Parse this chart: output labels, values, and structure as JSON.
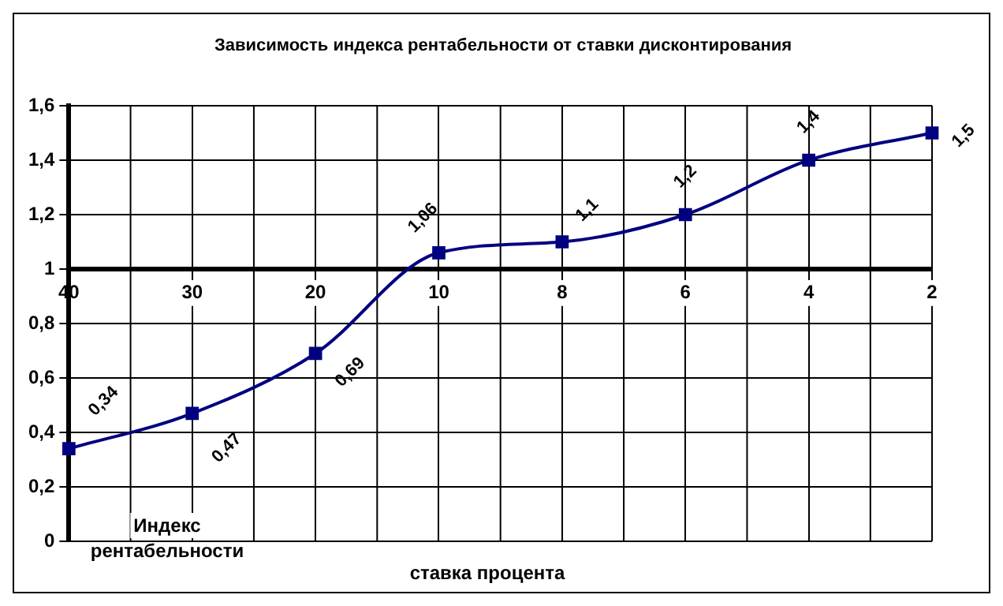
{
  "chart_data": {
    "type": "line",
    "title": "Зависимость индекса рентабельности от ставки дисконтирования",
    "xlabel": "ставка процента",
    "ylabel": "Индекс рентабельности",
    "categories": [
      "40",
      "30",
      "20",
      "10",
      "8",
      "6",
      "4",
      "2"
    ],
    "series": [
      {
        "color": "#000080",
        "values": [
          0.34,
          0.47,
          0.69,
          1.06,
          1.1,
          1.2,
          1.4,
          1.5
        ],
        "value_labels": [
          "0,34",
          "0,47",
          "0,69",
          "1,06",
          "1,1",
          "1,2",
          "1,4",
          "1,5"
        ]
      }
    ],
    "ylim": [
      0,
      1.6
    ],
    "yticks": [
      {
        "value": 0,
        "label": "0"
      },
      {
        "value": 0.2,
        "label": "0,2"
      },
      {
        "value": 0.4,
        "label": "0,4"
      },
      {
        "value": 0.6,
        "label": "0,6"
      },
      {
        "value": 0.8,
        "label": "0,8"
      },
      {
        "value": 1,
        "label": "1"
      },
      {
        "value": 1.2,
        "label": "1,2"
      },
      {
        "value": 1.4,
        "label": "1,4"
      },
      {
        "value": 1.6,
        "label": "1,6"
      }
    ],
    "grid": true,
    "marker": "square",
    "legend": false
  }
}
